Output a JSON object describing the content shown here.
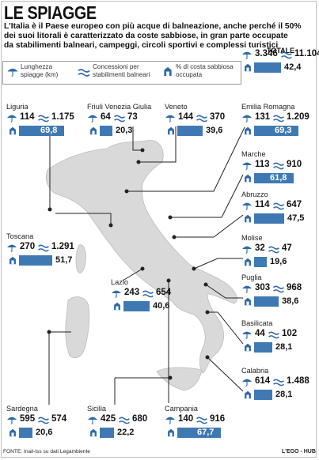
{
  "title": "LE SPIAGGE",
  "intro": [
    "L'Italia è il Paese europeo con più acque di balneazione, anche perché il 50%",
    "dei suoi litorali è caratterizzato da coste sabbiose, in gran parte occupate",
    "da stabilimenti balneari, campeggi, circoli sportivi e complessi turistici"
  ],
  "legend": {
    "length": [
      "Lunghezza",
      "spiagge (km)"
    ],
    "concessions": [
      "Concessioni per",
      "stabilimenti balneari"
    ],
    "sandy": [
      "% di costa sabbiosa",
      "occupata"
    ]
  },
  "totale": {
    "label": "TOTALE",
    "km": "3.346",
    "conc": "11.104",
    "pct": "42,4",
    "pct_value": 42.4
  },
  "regions": [
    {
      "name": "Liguria",
      "km": "114",
      "conc": "1.175",
      "pct": "69,8",
      "pct_value": 69.8
    },
    {
      "name": "Friuli Venezia Giulia",
      "km": "64",
      "conc": "73",
      "pct": "20,3",
      "pct_value": 20.3
    },
    {
      "name": "Veneto",
      "km": "144",
      "conc": "370",
      "pct": "39,6",
      "pct_value": 39.6
    },
    {
      "name": "Emilia Romagna",
      "km": "131",
      "conc": "1.209",
      "pct": "69,3",
      "pct_value": 69.3
    },
    {
      "name": "Marche",
      "km": "113",
      "conc": "910",
      "pct": "61,8",
      "pct_value": 61.8
    },
    {
      "name": "Abruzzo",
      "km": "114",
      "conc": "647",
      "pct": "47,5",
      "pct_value": 47.5
    },
    {
      "name": "Toscana",
      "km": "270",
      "conc": "1.291",
      "pct": "51,7",
      "pct_value": 51.7
    },
    {
      "name": "Molise",
      "km": "32",
      "conc": "47",
      "pct": "19,6",
      "pct_value": 19.6
    },
    {
      "name": "Lazio",
      "km": "243",
      "conc": "654",
      "pct": "40,6",
      "pct_value": 40.6
    },
    {
      "name": "Puglia",
      "km": "303",
      "conc": "968",
      "pct": "38,6",
      "pct_value": 38.6
    },
    {
      "name": "Basilicata",
      "km": "44",
      "conc": "102",
      "pct": "28,1",
      "pct_value": 28.1
    },
    {
      "name": "Calabria",
      "km": "614",
      "conc": "1.488",
      "pct": "28,1",
      "pct_value": 28.1
    },
    {
      "name": "Sardegna",
      "km": "595",
      "conc": "574",
      "pct": "20,6",
      "pct_value": 20.6
    },
    {
      "name": "Sicilia",
      "km": "425",
      "conc": "680",
      "pct": "22,2",
      "pct_value": 22.2
    },
    {
      "name": "Campania",
      "km": "140",
      "conc": "916",
      "pct": "67,7",
      "pct_value": 67.7
    }
  ],
  "source": "FONTE: Inail-Iss su dati Legambiente",
  "brand": "L'EGO - HUB",
  "colors": {
    "bar": "#3f79b4",
    "map": "#d9d9d9",
    "line": "#222222"
  }
}
